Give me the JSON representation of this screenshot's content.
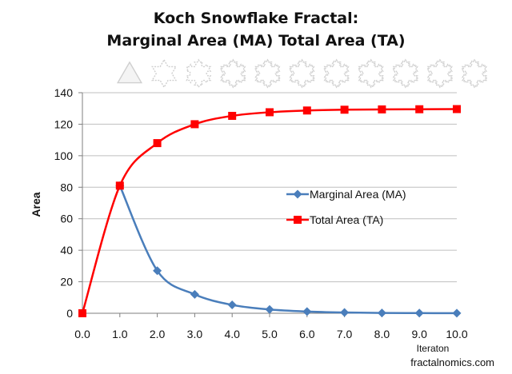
{
  "colors": {
    "ma": "#4a7ebb",
    "ta": "#ff0000",
    "grid": "#bfbfbf",
    "snowflake": "#cfcfcf"
  },
  "snowflake_strip": {
    "icon": "koch-snowflake-icon",
    "count": 11
  },
  "credit": "fractalnomics.com",
  "chart_data": {
    "type": "line",
    "title": "Koch Snowflake Fractal:",
    "subtitle": "Marginal Area (MA) Total Area (TA)",
    "xlabel": "Iteraton",
    "ylabel": "Area",
    "x": [
      "0.0",
      "1.0",
      "2.0",
      "3.0",
      "4.0",
      "5.0",
      "6.0",
      "7.0",
      "8.0",
      "9.0",
      "10.0"
    ],
    "xlim": [
      0,
      10
    ],
    "ylim": [
      0,
      140
    ],
    "yticks": [
      0,
      20,
      40,
      60,
      80,
      100,
      120,
      140
    ],
    "grid": true,
    "legend": "center-right",
    "series": [
      {
        "name": "Marginal Area (MA)",
        "marker": "diamond",
        "values": [
          null,
          81,
          27,
          12,
          5.3,
          2.4,
          1.1,
          0.5,
          0.2,
          0.1,
          0.05
        ]
      },
      {
        "name": "Total Area (TA)",
        "marker": "square",
        "values": [
          0,
          81,
          108,
          120,
          125.3,
          127.6,
          128.7,
          129.2,
          129.4,
          129.5,
          129.6
        ]
      }
    ]
  }
}
